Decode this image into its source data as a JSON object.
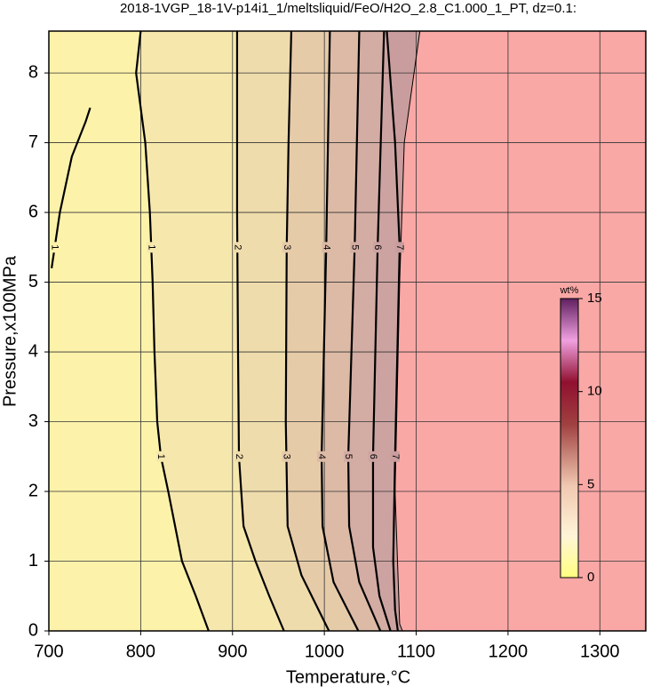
{
  "chart_data": {
    "type": "contour",
    "title": "2018-1VGP_18-1V-p14i1_1/meltsliquid/FeO/H2O_2.8_C1.000_1_PT, dz=0.1:",
    "x_label": "Temperature,°C",
    "y_label": "Pressure,x100MPa",
    "xlim": [
      700,
      1350
    ],
    "ylim": [
      0,
      8.6
    ],
    "xticks": [
      700,
      800,
      900,
      1000,
      1100,
      1200,
      1300
    ],
    "yticks": [
      0,
      1,
      2,
      3,
      4,
      5,
      6,
      7,
      8
    ],
    "grid": true,
    "background_color": "#fcf2aa",
    "contours": [
      {
        "level": 1,
        "color": "#f6e8ad",
        "x": [
          800,
          795,
          805,
          810,
          813,
          815,
          818,
          822,
          830,
          845,
          860,
          874
        ],
        "y": [
          8.6,
          8,
          7,
          6,
          5,
          4,
          3,
          2.5,
          2,
          1,
          0.5,
          0
        ]
      },
      {
        "level": 2,
        "color": "#efdcac",
        "x": [
          905,
          905,
          906,
          907,
          912,
          925,
          940,
          956
        ],
        "y": [
          8.6,
          6,
          4,
          2.5,
          1.5,
          1,
          0.5,
          0
        ]
      },
      {
        "level": 3,
        "color": "#e6cba9",
        "x": [
          964,
          961,
          959,
          958,
          960,
          975,
          1005
        ],
        "y": [
          8.6,
          7,
          5.5,
          3,
          1.5,
          0.8,
          0
        ]
      },
      {
        "level": 4,
        "color": "#dcbaa6",
        "x": [
          1006,
          1002,
          997,
          998,
          1010,
          1037
        ],
        "y": [
          8.6,
          5.5,
          2.5,
          1.5,
          0.7,
          0
        ]
      },
      {
        "level": 5,
        "color": "#d3aca3",
        "x": [
          1038,
          1033,
          1026,
          1027,
          1038,
          1061
        ],
        "y": [
          8.6,
          5.5,
          2.5,
          1.5,
          0.7,
          0
        ]
      },
      {
        "level": 6,
        "color": "#cca3a1",
        "x": [
          1065,
          1058,
          1053,
          1053,
          1060,
          1072
        ],
        "y": [
          8.6,
          5.5,
          2.5,
          1.2,
          0.5,
          0
        ]
      },
      {
        "level": 7,
        "color": "#c99d9d",
        "x": [
          1068,
          1077,
          1082,
          1077,
          1075,
          1077,
          1080
        ],
        "y": [
          8.6,
          7,
          5.5,
          2.5,
          1,
          0.3,
          0
        ]
      },
      {
        "level": 1,
        "x": [
          703,
          712,
          725,
          740,
          745
        ],
        "y": [
          5.2,
          6,
          6.8,
          7.3,
          7.5
        ]
      }
    ],
    "region_boundary": {
      "color": "#f9a8a6",
      "x": [
        1104,
        1087,
        1082,
        1077,
        1082,
        1085
      ],
      "y": [
        8.6,
        7,
        5,
        2,
        0.1,
        0
      ]
    },
    "colorbar": {
      "label": "wt%",
      "lim": [
        0,
        15
      ],
      "ticks": [
        0,
        5,
        10,
        15
      ]
    }
  }
}
